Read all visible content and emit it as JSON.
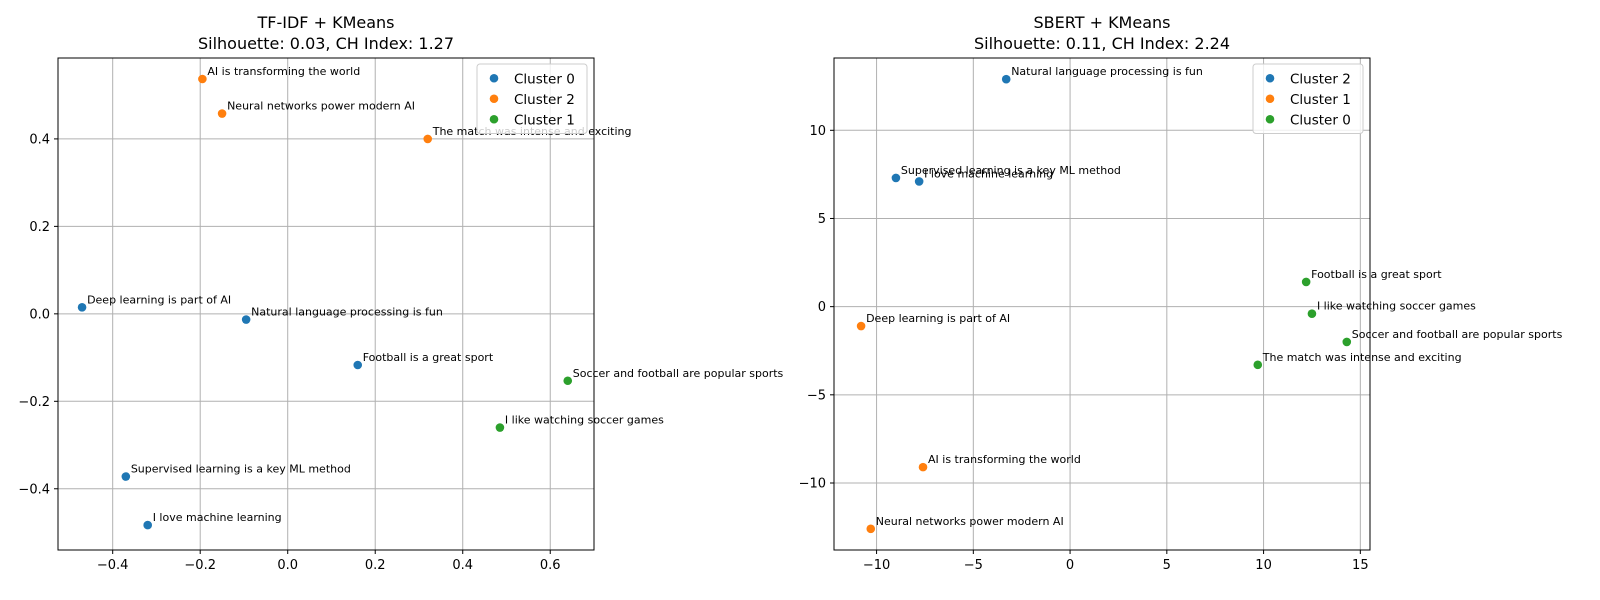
{
  "chart_data": [
    {
      "type": "scatter",
      "title": "TF-IDF + KMeans",
      "subtitle": "Silhouette: 0.03, CH Index: 1.27",
      "xlabel": "",
      "ylabel": "",
      "xlim": [
        -0.525,
        0.7
      ],
      "ylim": [
        -0.54,
        0.585
      ],
      "xticks": [
        -0.4,
        -0.2,
        0.0,
        0.2,
        0.4,
        0.6
      ],
      "xtick_labels": [
        "−0.4",
        "−0.2",
        "0.0",
        "0.2",
        "0.4",
        "0.6"
      ],
      "yticks": [
        -0.4,
        -0.2,
        0.0,
        0.2,
        0.4
      ],
      "ytick_labels": [
        "−0.4",
        "−0.2",
        "0.0",
        "0.2",
        "0.4"
      ],
      "grid": true,
      "legend_position": "top-right",
      "series": [
        {
          "name": "Cluster 0",
          "color": "#1f77b4",
          "points": [
            {
              "x": -0.47,
              "y": 0.015,
              "label": "Deep learning is part of AI"
            },
            {
              "x": -0.095,
              "y": -0.013,
              "label": "Natural language processing is fun"
            },
            {
              "x": 0.16,
              "y": -0.117,
              "label": "Football is a great sport"
            },
            {
              "x": -0.37,
              "y": -0.372,
              "label": "Supervised learning is a key ML method"
            },
            {
              "x": -0.32,
              "y": -0.483,
              "label": "I love machine learning"
            }
          ]
        },
        {
          "name": "Cluster 2",
          "color": "#ff7f0e",
          "points": [
            {
              "x": -0.195,
              "y": 0.537,
              "label": "AI is transforming the world"
            },
            {
              "x": -0.15,
              "y": 0.458,
              "label": "Neural networks power modern AI"
            },
            {
              "x": 0.32,
              "y": 0.4,
              "label": "The match was intense and exciting"
            }
          ]
        },
        {
          "name": "Cluster 1",
          "color": "#2ca02c",
          "points": [
            {
              "x": 0.64,
              "y": -0.153,
              "label": "Soccer and football are popular sports"
            },
            {
              "x": 0.485,
              "y": -0.26,
              "label": "I like watching soccer games"
            }
          ]
        }
      ]
    },
    {
      "type": "scatter",
      "title": "SBERT + KMeans",
      "subtitle": "Silhouette: 0.11, CH Index: 2.24",
      "xlabel": "",
      "ylabel": "",
      "xlim": [
        -12.2,
        15.5
      ],
      "ylim": [
        -13.8,
        14.1
      ],
      "xticks": [
        -10,
        -5,
        0,
        5,
        10,
        15
      ],
      "xtick_labels": [
        "−10",
        "−5",
        "0",
        "5",
        "10",
        "15"
      ],
      "yticks": [
        -10,
        -5,
        0,
        5,
        10
      ],
      "ytick_labels": [
        "−10",
        "−5",
        "0",
        "5",
        "10"
      ],
      "grid": true,
      "legend_position": "top-right",
      "series": [
        {
          "name": "Cluster 2",
          "color": "#1f77b4",
          "points": [
            {
              "x": -3.3,
              "y": 12.9,
              "label": "Natural language processing is fun"
            },
            {
              "x": -9.0,
              "y": 7.3,
              "label": "Supervised learning is a key ML method"
            },
            {
              "x": -7.8,
              "y": 7.1,
              "label": "I love machine learning"
            }
          ]
        },
        {
          "name": "Cluster 1",
          "color": "#ff7f0e",
          "points": [
            {
              "x": -10.8,
              "y": -1.1,
              "label": "Deep learning is part of AI"
            },
            {
              "x": -7.6,
              "y": -9.1,
              "label": "AI is transforming the world"
            },
            {
              "x": -10.3,
              "y": -12.6,
              "label": "Neural networks power modern AI"
            }
          ]
        },
        {
          "name": "Cluster 0",
          "color": "#2ca02c",
          "points": [
            {
              "x": 12.2,
              "y": 1.4,
              "label": "Football is a great sport"
            },
            {
              "x": 12.5,
              "y": -0.4,
              "label": "I like watching soccer games"
            },
            {
              "x": 14.3,
              "y": -2.0,
              "label": "Soccer and football are popular sports"
            },
            {
              "x": 9.7,
              "y": -3.3,
              "label": "The match was intense and exciting"
            }
          ]
        }
      ]
    }
  ]
}
